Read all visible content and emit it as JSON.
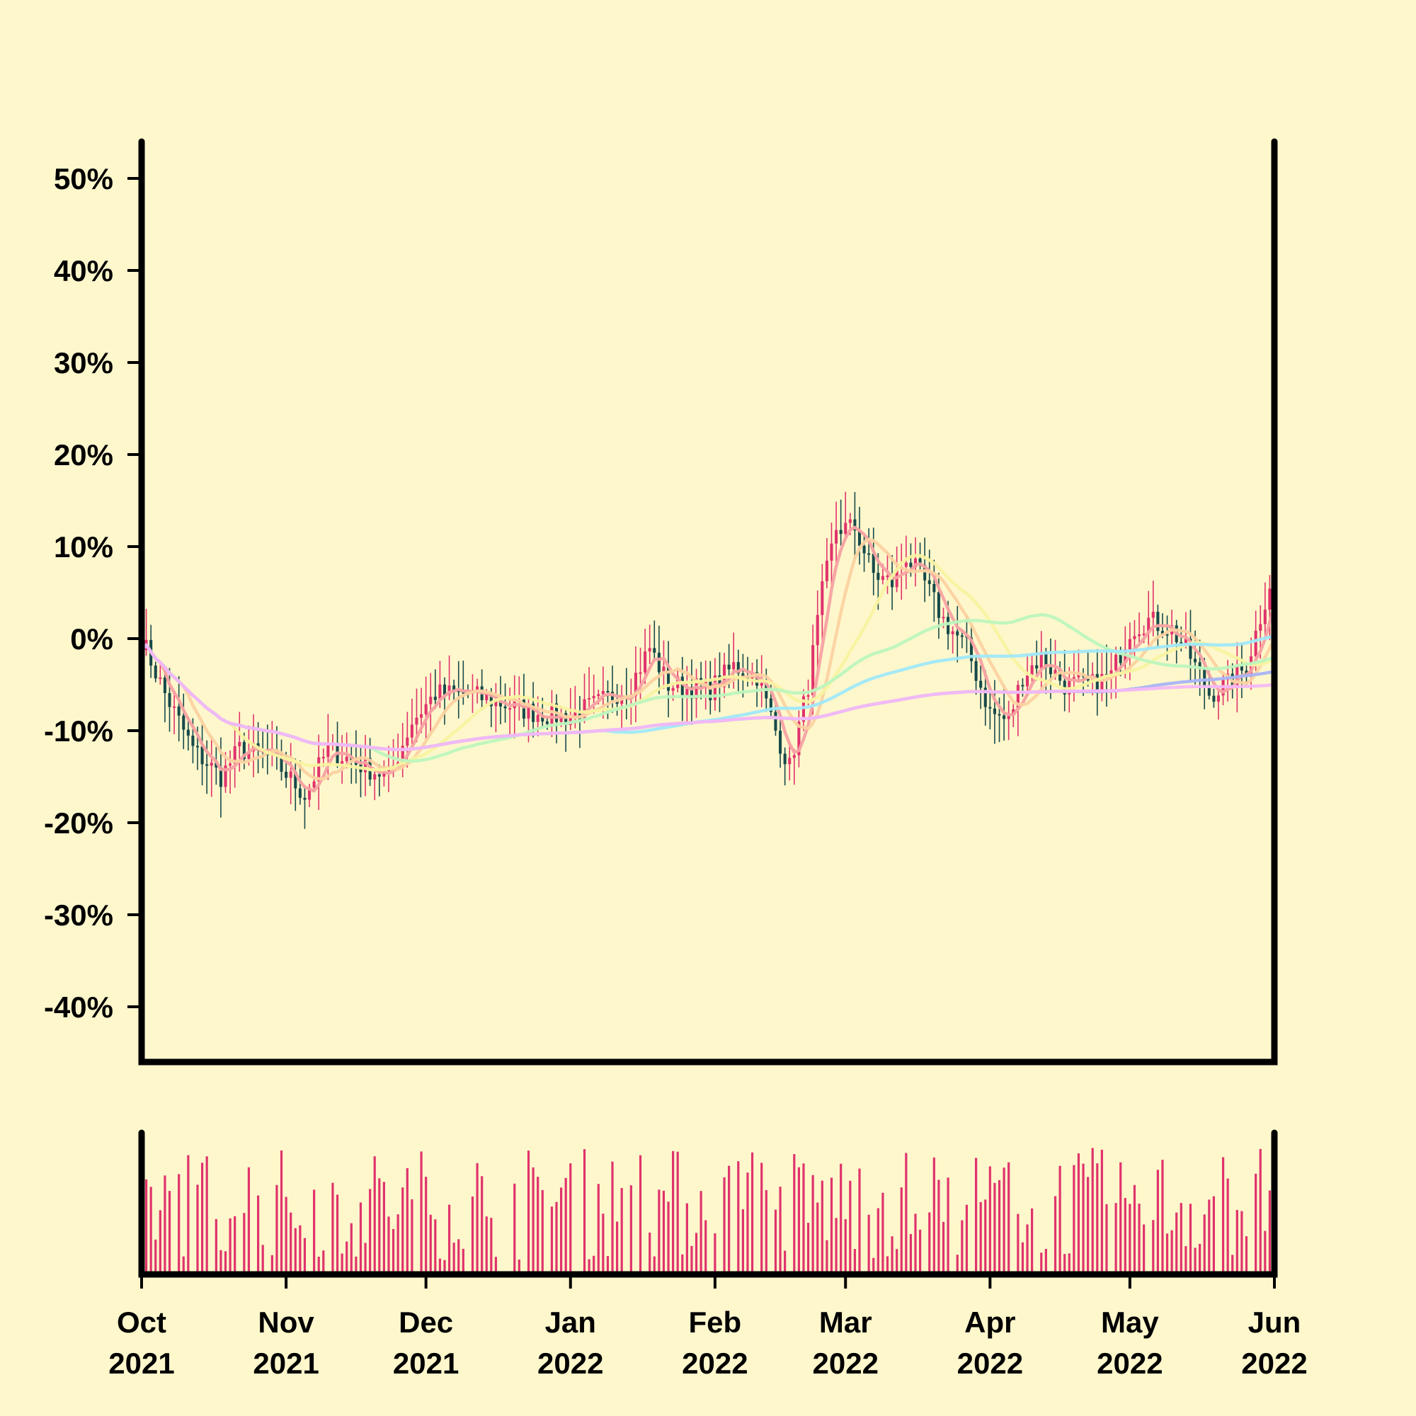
{
  "chart_data": {
    "type": "candlestick",
    "title": "",
    "xlabel": "",
    "ylabel": "",
    "ylim": [
      -0.46,
      0.54
    ],
    "y_ticks": [
      {
        "value": 0.5,
        "label": "50%"
      },
      {
        "value": 0.4,
        "label": "40%"
      },
      {
        "value": 0.3,
        "label": "30%"
      },
      {
        "value": 0.2,
        "label": "20%"
      },
      {
        "value": 0.1,
        "label": "10%"
      },
      {
        "value": 0.0,
        "label": "0%"
      },
      {
        "value": -0.1,
        "label": "-10%"
      },
      {
        "value": -0.2,
        "label": "-20%"
      },
      {
        "value": -0.3,
        "label": "-30%"
      },
      {
        "value": -0.4,
        "label": "-40%"
      }
    ],
    "x_range": [
      "2021-10-01",
      "2022-06-01"
    ],
    "x_ticks": [
      {
        "date": "2021-10-01",
        "line1": "Oct",
        "line2": "2021"
      },
      {
        "date": "2021-11-01",
        "line1": "Nov",
        "line2": "2021"
      },
      {
        "date": "2021-12-01",
        "line1": "Dec",
        "line2": "2021"
      },
      {
        "date": "2022-01-01",
        "line1": "Jan",
        "line2": "2022"
      },
      {
        "date": "2022-02-01",
        "line1": "Feb",
        "line2": "2022"
      },
      {
        "date": "2022-03-01",
        "line1": "Mar",
        "line2": "2022"
      },
      {
        "date": "2022-04-01",
        "line1": "Apr",
        "line2": "2022"
      },
      {
        "date": "2022-05-01",
        "line1": "May",
        "line2": "2022"
      },
      {
        "date": "2022-06-01",
        "line1": "Jun",
        "line2": "2022"
      }
    ],
    "price_anchors": [
      [
        "2021-10-01",
        0.0
      ],
      [
        "2021-10-06",
        -0.06
      ],
      [
        "2021-10-12",
        -0.12
      ],
      [
        "2021-10-18",
        -0.15
      ],
      [
        "2021-10-22",
        -0.12
      ],
      [
        "2021-10-29",
        -0.13
      ],
      [
        "2021-11-05",
        -0.17
      ],
      [
        "2021-11-10",
        -0.12
      ],
      [
        "2021-11-18",
        -0.14
      ],
      [
        "2021-11-23",
        -0.15
      ],
      [
        "2021-11-28",
        -0.09
      ],
      [
        "2021-12-03",
        -0.06
      ],
      [
        "2021-12-10",
        -0.06
      ],
      [
        "2021-12-17",
        -0.07
      ],
      [
        "2021-12-24",
        -0.08
      ],
      [
        "2021-12-31",
        -0.085
      ],
      [
        "2022-01-07",
        -0.07
      ],
      [
        "2022-01-14",
        -0.05
      ],
      [
        "2022-01-18",
        -0.01
      ],
      [
        "2022-01-22",
        -0.05
      ],
      [
        "2022-01-31",
        -0.055
      ],
      [
        "2022-02-05",
        -0.03
      ],
      [
        "2022-02-10",
        -0.04
      ],
      [
        "2022-02-14",
        -0.1
      ],
      [
        "2022-02-17",
        -0.14
      ],
      [
        "2022-02-21",
        -0.05
      ],
      [
        "2022-02-24",
        0.05
      ],
      [
        "2022-02-27",
        0.12
      ],
      [
        "2022-03-03",
        0.12
      ],
      [
        "2022-03-07",
        0.07
      ],
      [
        "2022-03-11",
        0.06
      ],
      [
        "2022-03-14",
        0.09
      ],
      [
        "2022-03-18",
        0.06
      ],
      [
        "2022-03-22",
        0.02
      ],
      [
        "2022-03-27",
        -0.01
      ],
      [
        "2022-04-01",
        -0.08
      ],
      [
        "2022-04-05",
        -0.09
      ],
      [
        "2022-04-08",
        -0.04
      ],
      [
        "2022-04-12",
        -0.02
      ],
      [
        "2022-04-17",
        -0.05
      ],
      [
        "2022-04-23",
        -0.05
      ],
      [
        "2022-04-27",
        -0.04
      ],
      [
        "2022-05-01",
        0.01
      ],
      [
        "2022-05-05",
        0.02
      ],
      [
        "2022-05-10",
        0.01
      ],
      [
        "2022-05-14",
        -0.02
      ],
      [
        "2022-05-18",
        -0.06
      ],
      [
        "2022-05-22",
        -0.05
      ],
      [
        "2022-05-26",
        -0.03
      ],
      [
        "2022-05-31",
        0.06
      ]
    ],
    "ma_windows": [
      5,
      10,
      20,
      50,
      100,
      200
    ],
    "colors": {
      "background": "#fef7cc",
      "up": "#e0336c",
      "down": "#174a4a",
      "volume": "#e0336c",
      "ma5": "#f7a2a2",
      "ma10": "#fcd2a0",
      "ma20": "#f8f3a0",
      "ma50": "#bdf5bd",
      "ma100": "#a0e8f8",
      "ma200": "#a8b4f4",
      "ma_long": "#f4b8f4",
      "axis": "#000000"
    },
    "volume_panel": true,
    "grid": false,
    "legend": "none"
  }
}
